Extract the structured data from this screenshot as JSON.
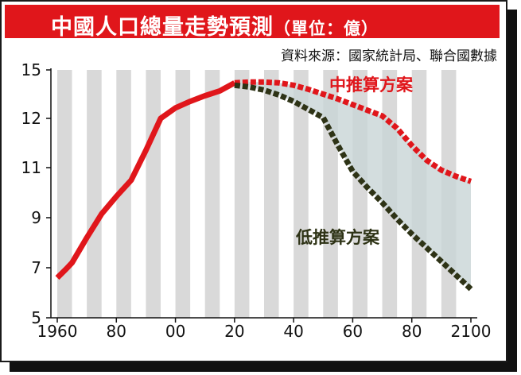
{
  "header": {
    "title": "中國人口總量走勢預測",
    "unit": "（單位：億）",
    "source": "資料來源：國家統計局、聯合國數據"
  },
  "colors": {
    "title_bar": "#e0161b",
    "medium_series": "#e0161b",
    "low_series": "#2e3316",
    "stripe": "#d9d9d9",
    "band_fill": "#c8d4d6"
  },
  "chart_data": {
    "type": "line",
    "title": "中國人口總量走勢預測",
    "unit": "億",
    "xlabel": "",
    "ylabel": "",
    "x_ticks": [
      "1960",
      "80",
      "00",
      "20",
      "40",
      "60",
      "80",
      "2100"
    ],
    "x_tick_values": [
      1960,
      1980,
      2000,
      2020,
      2040,
      2060,
      2080,
      2100
    ],
    "y_ticks": [
      "5",
      "7",
      "9",
      "11",
      "12",
      "15"
    ],
    "xlim": [
      1960,
      2100
    ],
    "grid": "alternating vertical stripes every 5 years",
    "series": [
      {
        "name": "中推算方案",
        "color": "#e0161b",
        "style": "dashed",
        "x": [
          2020,
          2025,
          2030,
          2035,
          2040,
          2045,
          2050,
          2055,
          2060,
          2065,
          2070,
          2075,
          2080,
          2085,
          2090,
          2095,
          2100
        ],
        "y": [
          14.2,
          14.25,
          14.25,
          14.2,
          14.05,
          13.8,
          13.5,
          13.2,
          12.85,
          12.5,
          12.15,
          11.8,
          11.45,
          11.15,
          10.9,
          10.65,
          10.45
        ]
      },
      {
        "name": "低推算方案",
        "color": "#2e3316",
        "style": "dashed",
        "x": [
          2020,
          2025,
          2030,
          2035,
          2040,
          2045,
          2050,
          2055,
          2060,
          2065,
          2070,
          2075,
          2080,
          2085,
          2090,
          2095,
          2100
        ],
        "y": [
          14.05,
          13.95,
          13.75,
          13.45,
          13.05,
          12.55,
          12.05,
          11.45,
          10.85,
          10.2,
          9.6,
          8.95,
          8.35,
          7.8,
          7.25,
          6.7,
          6.15
        ]
      },
      {
        "name": "",
        "color": "#e0161b",
        "style": "solid",
        "x": [
          1960,
          1963,
          1965,
          1970,
          1975,
          1980,
          1985,
          1990,
          1995,
          2000,
          2005,
          2010,
          2015,
          2020
        ],
        "y": [
          6.6,
          6.95,
          7.2,
          8.2,
          9.15,
          9.85,
          10.5,
          11.35,
          12.0,
          12.65,
          13.05,
          13.4,
          13.7,
          14.2
        ]
      }
    ]
  }
}
